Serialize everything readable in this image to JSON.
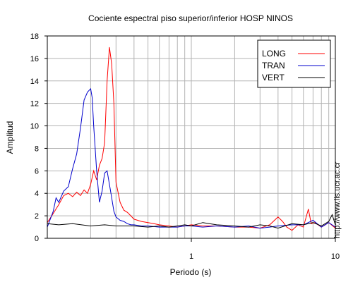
{
  "chart_data": {
    "type": "line",
    "title": "Cociente espectral piso superior/inferior  HOSP NINOS",
    "xlabel": "Periodo (s)",
    "ylabel": "Amplitud",
    "x_scale": "log",
    "xlim": [
      0.1,
      10
    ],
    "ylim": [
      0,
      18
    ],
    "x_ticks": [
      {
        "value": 1,
        "label": "1"
      },
      {
        "value": 10,
        "label": "10"
      }
    ],
    "y_ticks": [
      0,
      2,
      4,
      6,
      8,
      10,
      12,
      14,
      16,
      18
    ],
    "grid": true,
    "legend_position": "top-right",
    "series": [
      {
        "name": "LONG",
        "color": "#ff0000",
        "x": [
          0.1,
          0.11,
          0.12,
          0.13,
          0.14,
          0.15,
          0.16,
          0.17,
          0.18,
          0.19,
          0.2,
          0.21,
          0.22,
          0.23,
          0.24,
          0.25,
          0.26,
          0.27,
          0.28,
          0.29,
          0.3,
          0.32,
          0.34,
          0.36,
          0.38,
          0.4,
          0.45,
          0.5,
          0.55,
          0.6,
          0.7,
          0.8,
          0.9,
          1.0,
          1.2,
          1.5,
          2.0,
          2.5,
          3.0,
          3.5,
          4.0,
          4.3,
          4.6,
          5.0,
          5.5,
          6.0,
          6.5,
          6.8,
          7.2,
          8.0,
          9.0,
          10.0
        ],
        "y": [
          1.4,
          2.2,
          3.0,
          3.8,
          4.0,
          3.7,
          4.1,
          3.8,
          4.3,
          4.0,
          4.8,
          6.0,
          5.2,
          6.5,
          7.1,
          8.5,
          14.0,
          17.0,
          15.5,
          12.0,
          5.0,
          3.2,
          2.5,
          2.3,
          2.0,
          1.7,
          1.5,
          1.4,
          1.3,
          1.2,
          1.1,
          1.0,
          1.1,
          1.2,
          1.1,
          1.1,
          1.0,
          1.0,
          0.9,
          1.2,
          1.9,
          1.5,
          1.0,
          0.7,
          1.2,
          1.0,
          2.6,
          1.3,
          1.4,
          1.0,
          1.4,
          0.9
        ]
      },
      {
        "name": "TRAN",
        "color": "#0000cc",
        "x": [
          0.1,
          0.11,
          0.115,
          0.12,
          0.13,
          0.14,
          0.15,
          0.16,
          0.17,
          0.18,
          0.19,
          0.2,
          0.205,
          0.21,
          0.22,
          0.23,
          0.24,
          0.25,
          0.26,
          0.27,
          0.28,
          0.29,
          0.3,
          0.32,
          0.34,
          0.36,
          0.38,
          0.4,
          0.45,
          0.5,
          0.6,
          0.7,
          0.8,
          0.9,
          1.0,
          1.2,
          1.5,
          2.0,
          2.5,
          3.0,
          3.5,
          4.0,
          5.0,
          6.0,
          7.0,
          8.0,
          9.0,
          10.0
        ],
        "y": [
          1.0,
          2.4,
          3.6,
          3.2,
          4.2,
          4.6,
          6.2,
          7.5,
          9.8,
          12.3,
          13.0,
          13.3,
          12.5,
          10.0,
          6.0,
          3.2,
          4.2,
          5.8,
          6.0,
          4.8,
          3.6,
          2.4,
          1.9,
          1.6,
          1.5,
          1.3,
          1.2,
          1.2,
          1.1,
          1.1,
          1.0,
          1.0,
          1.0,
          1.1,
          1.1,
          1.0,
          1.1,
          1.0,
          1.1,
          0.9,
          1.0,
          1.1,
          1.2,
          1.2,
          1.6,
          1.0,
          1.4,
          1.0
        ]
      },
      {
        "name": "VERT",
        "color": "#000000",
        "x": [
          0.1,
          0.12,
          0.15,
          0.2,
          0.25,
          0.3,
          0.35,
          0.4,
          0.5,
          0.6,
          0.7,
          0.8,
          0.9,
          1.0,
          1.2,
          1.5,
          2.0,
          2.5,
          3.0,
          3.5,
          4.0,
          5.0,
          6.0,
          7.0,
          8.0,
          9.0,
          9.5,
          10.0
        ],
        "y": [
          1.3,
          1.2,
          1.3,
          1.1,
          1.2,
          1.1,
          1.1,
          1.1,
          1.0,
          1.1,
          1.0,
          1.1,
          1.2,
          1.1,
          1.4,
          1.2,
          1.1,
          1.0,
          1.2,
          1.1,
          0.9,
          1.3,
          1.2,
          1.4,
          1.1,
          1.5,
          2.1,
          1.2
        ]
      }
    ]
  },
  "side_url": "http://www.lis.ucr.ac.cr"
}
